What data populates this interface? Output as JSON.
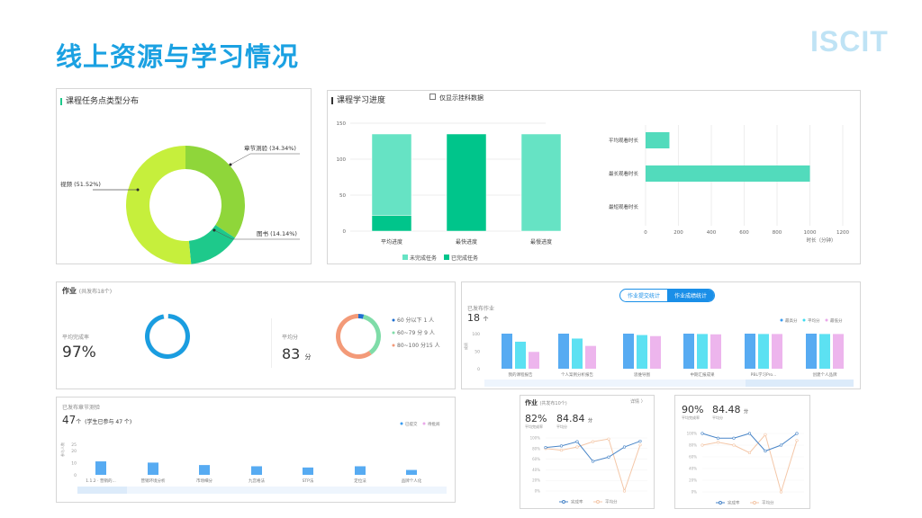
{
  "slide": {
    "title": "线上资源与学习情况",
    "logo": "ISCIT"
  },
  "colors": {
    "title": "#1ba1e2",
    "accent_green": "#1ec98b",
    "blue": "#1a9de0"
  },
  "task_types": {
    "title": "课程任务点类型分布",
    "chart_data": {
      "type": "pie",
      "donut": true,
      "slices": [
        {
          "label": "章节测验 (34.34%)",
          "name": "章节测验",
          "value": 34.34,
          "color": "#8fd63a"
        },
        {
          "label": "图书 (14.14%)",
          "name": "图书",
          "value": 14.14,
          "color": "#1ec98b"
        },
        {
          "label": "视频 (51.52%)",
          "name": "视频",
          "value": 51.52,
          "color": "#c6ef3c"
        }
      ]
    }
  },
  "progress": {
    "title": "课程学习进度",
    "checkbox_label": "仅显示挂科数据",
    "checkbox_checked": false,
    "chart_data": [
      {
        "type": "bar",
        "stacked": true,
        "categories": [
          "平均进度",
          "最快进度",
          "最慢进度"
        ],
        "ylim": [
          0,
          150
        ],
        "yticks": [
          0,
          50,
          100,
          150
        ],
        "grid": true,
        "legend": "bottom",
        "series": [
          {
            "name": "已完成任务",
            "values": [
              22,
              135,
              0
            ],
            "color": "#00c58b"
          },
          {
            "name": "未完成任务",
            "values": [
              113,
              0,
              135
            ],
            "color": "#66e3c4"
          }
        ]
      },
      {
        "type": "bar",
        "orientation": "horizontal",
        "categories": [
          "平均观看时长",
          "最长观看时长",
          "最短观看时长"
        ],
        "values": [
          145,
          1000,
          0
        ],
        "xlim": [
          0,
          1200
        ],
        "xticks": [
          0,
          200,
          400,
          600,
          800,
          1000,
          1200
        ],
        "xlabel": "时长（分钟）",
        "grid": true,
        "color": "#52dbbc"
      }
    ]
  },
  "homework": {
    "title": "作业",
    "subtitle": "(共发布18个)",
    "rate_label": "平均完成率",
    "rate_value": "97%",
    "rate": 97,
    "avg_label": "平均分",
    "avg_value": "83",
    "avg_unit": "分",
    "chart_data": {
      "type": "pie",
      "donut": true,
      "slices": [
        {
          "label": "60 分以下  1 人",
          "value": 1,
          "color": "#1f6fd1"
        },
        {
          "label": "60~79 分  9 人",
          "value": 9,
          "color": "#7fdca8"
        },
        {
          "label": "80~100 分15 人",
          "value": 15,
          "color": "#f39a78"
        }
      ]
    }
  },
  "hw_stats": {
    "tabs": [
      {
        "label": "作业提交统计",
        "active": false
      },
      {
        "label": "作业成绩统计",
        "active": true
      }
    ],
    "count_label": "已发布作业",
    "count_value": "18",
    "count_unit": "个",
    "ylabel": "成绩",
    "chart_data": {
      "type": "bar",
      "categories": [
        "我的课程报告",
        "个人案例分析报告",
        "思维导图",
        "中期汇报成果",
        "PBL学习Pro...",
        "创建个人品牌"
      ],
      "ylim": [
        0,
        100
      ],
      "yticks": [
        0,
        50,
        100
      ],
      "legend": "top-right",
      "series": [
        {
          "name": "最高分",
          "values": [
            100,
            100,
            100,
            100,
            100,
            100
          ],
          "color": "#3a9cf0"
        },
        {
          "name": "平均分",
          "values": [
            77,
            86,
            96,
            99,
            99,
            99
          ],
          "color": "#3fdcf0"
        },
        {
          "name": "最低分",
          "values": [
            48,
            65,
            93,
            98,
            99,
            99
          ],
          "color": "#eaa8ea"
        }
      ]
    }
  },
  "chapter_test": {
    "title": "已发布章节测验",
    "count_value": "47",
    "count_unit": "个",
    "count_note": "(学生已参与 47 个)",
    "ylabel": "参与人数",
    "chart_data": {
      "type": "bar",
      "categories": [
        "1.1.2 · 营销的...",
        "营销环境分析",
        "市场细分",
        "九宫格法",
        "STP法",
        "定位法",
        "品牌个人化"
      ],
      "ylim": [
        0,
        25
      ],
      "yticks": [
        0,
        10,
        20,
        25
      ],
      "legend": "top-right",
      "series": [
        {
          "name": "已提交",
          "values": [
            11,
            10,
            8,
            7,
            6,
            7,
            4
          ],
          "color": "#3a9cf0"
        },
        {
          "name": "待批阅",
          "values": [
            0,
            0,
            0,
            0,
            0,
            0,
            0
          ],
          "color": "#eaa8ea"
        }
      ]
    }
  },
  "line1": {
    "title": "作业",
    "subtitle": "(共发布10个)",
    "detail_link": "详情 〉",
    "rate_value": "82%",
    "rate_label": "平均完成率",
    "score_value": "84.84",
    "score_unit": "分",
    "score_label": "平均分",
    "chart_data": {
      "type": "line",
      "ylim": [
        0,
        100
      ],
      "yticks": [
        "0%",
        "20%",
        "40%",
        "60%",
        "80%",
        "100%"
      ],
      "legend": "bottom",
      "series": [
        {
          "name": "完成率",
          "values": [
            82,
            85,
            93,
            56,
            64,
            83,
            94
          ],
          "color": "#4a86c8"
        },
        {
          "name": "平均分",
          "values": [
            80,
            77,
            83,
            93,
            98,
            0,
            87
          ],
          "color": "#f4c7a8"
        }
      ]
    }
  },
  "line2": {
    "rate_value": "90%",
    "rate_label": "平均完成率",
    "score_value": "84.48",
    "score_unit": "分",
    "score_label": "平均分",
    "chart_data": {
      "type": "line",
      "ylim": [
        0,
        100
      ],
      "yticks": [
        "0%",
        "20%",
        "40%",
        "60%",
        "80%",
        "100%"
      ],
      "legend": "bottom",
      "series": [
        {
          "name": "完成率",
          "values": [
            100,
            92,
            92,
            100,
            70,
            80,
            100
          ],
          "color": "#4a86c8"
        },
        {
          "name": "平均分",
          "values": [
            80,
            85,
            80,
            67,
            98,
            0,
            88
          ],
          "color": "#f4c7a8"
        }
      ]
    }
  }
}
